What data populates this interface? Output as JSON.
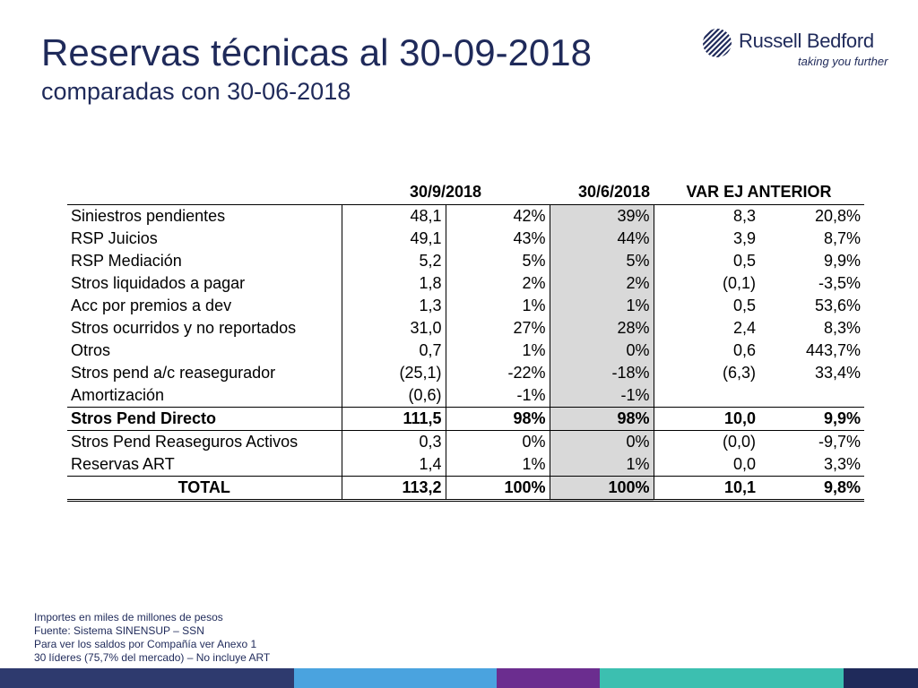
{
  "slide": {
    "title": "Reservas técnicas al 30-09-2018",
    "subtitle": "comparadas con 30-06-2018"
  },
  "logo": {
    "name": "Russell Bedford",
    "tagline": "taking you further",
    "icon": "globe-stripes-icon"
  },
  "table": {
    "headers": {
      "label": "",
      "date_current": "30/9/2018",
      "date_previous": "30/6/2018",
      "variation": "VAR EJ ANTERIOR"
    },
    "rows": [
      {
        "label": "Siniestros pendientes",
        "v1": "48,1",
        "p1": "42%",
        "p2": "39%",
        "var": "8,3",
        "varp": "20,8%"
      },
      {
        "label": "RSP Juicios",
        "v1": "49,1",
        "p1": "43%",
        "p2": "44%",
        "var": "3,9",
        "varp": "8,7%"
      },
      {
        "label": "RSP Mediación",
        "v1": "5,2",
        "p1": "5%",
        "p2": "5%",
        "var": "0,5",
        "varp": "9,9%"
      },
      {
        "label": "Stros liquidados a pagar",
        "v1": "1,8",
        "p1": "2%",
        "p2": "2%",
        "var": "(0,1)",
        "varp": "-3,5%"
      },
      {
        "label": "Acc por premios a dev",
        "v1": "1,3",
        "p1": "1%",
        "p2": "1%",
        "var": "0,5",
        "varp": "53,6%"
      },
      {
        "label": "Stros ocurridos y no reportados",
        "v1": "31,0",
        "p1": "27%",
        "p2": "28%",
        "var": "2,4",
        "varp": "8,3%"
      },
      {
        "label": "Otros",
        "v1": "0,7",
        "p1": "1%",
        "p2": "0%",
        "var": "0,6",
        "varp": "443,7%"
      },
      {
        "label": "Stros pend a/c reasegurador",
        "v1": "(25,1)",
        "p1": "-22%",
        "p2": "-18%",
        "var": "(6,3)",
        "varp": "33,4%"
      },
      {
        "label": "Amortización",
        "v1": "(0,6)",
        "p1": "-1%",
        "p2": "-1%",
        "var": "",
        "varp": ""
      },
      {
        "label": "Stros Pend Directo",
        "v1": "111,5",
        "p1": "98%",
        "p2": "98%",
        "var": "10,0",
        "varp": "9,9%"
      },
      {
        "label": "Stros Pend Reaseguros Activos",
        "v1": "0,3",
        "p1": "0%",
        "p2": "0%",
        "var": "(0,0)",
        "varp": "-9,7%"
      },
      {
        "label": "Reservas ART",
        "v1": "1,4",
        "p1": "1%",
        "p2": "1%",
        "var": "0,0",
        "varp": "3,3%"
      },
      {
        "label": "TOTAL",
        "v1": "113,2",
        "p1": "100%",
        "p2": "100%",
        "var": "10,1",
        "varp": "9,8%"
      }
    ]
  },
  "notes": [
    "Importes en miles de millones de pesos",
    "Fuente: Sistema SINENSUP – SSN",
    "Para ver los saldos por Compañía ver Anexo 1",
    "30 líderes (75,7% del mercado) – No incluye ART"
  ],
  "colors": {
    "title": "#1f2a5a",
    "shaded_column": "#d9d9d9",
    "footer_segments": [
      "#2e3a6e",
      "#4aa3df",
      "#6b2d8f",
      "#3cbfb0",
      "#1f2a5a"
    ]
  }
}
